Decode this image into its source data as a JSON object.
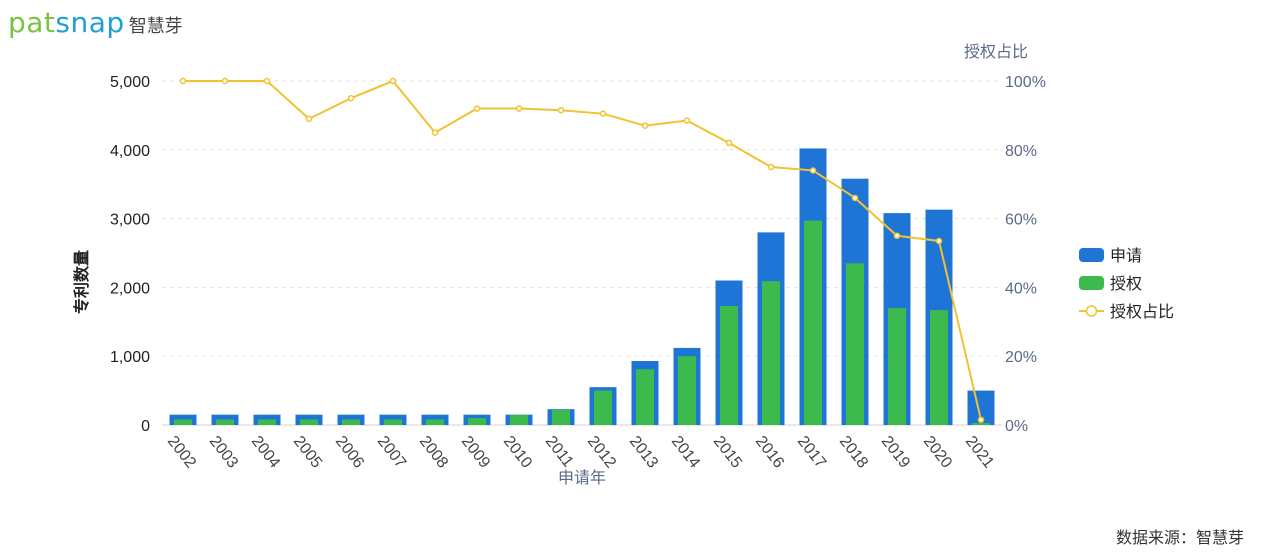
{
  "brand": {
    "prefix": "pat",
    "suffix": "snap",
    "cn": "智慧芽"
  },
  "source_text": "数据来源：智慧芽",
  "colors": {
    "applications": "#1f75d6",
    "grants": "#3dba4e",
    "ratio": "#f1c232"
  },
  "chart_data": {
    "type": "bar",
    "categories": [
      "2002",
      "2003",
      "2004",
      "2005",
      "2006",
      "2007",
      "2008",
      "2009",
      "2010",
      "2011",
      "2012",
      "2013",
      "2014",
      "2015",
      "2016",
      "2017",
      "2018",
      "2019",
      "2020",
      "2021"
    ],
    "series": [
      {
        "name": "申请",
        "type": "bar",
        "axis": "left",
        "values": [
          150,
          150,
          150,
          150,
          150,
          150,
          150,
          150,
          150,
          230,
          550,
          930,
          1120,
          2100,
          2800,
          4020,
          3580,
          3080,
          3130,
          500
        ]
      },
      {
        "name": "授权",
        "type": "bar",
        "axis": "left",
        "values": [
          80,
          80,
          80,
          80,
          80,
          80,
          80,
          100,
          150,
          220,
          500,
          810,
          1000,
          1730,
          2090,
          2970,
          2350,
          1700,
          1670,
          30
        ]
      },
      {
        "name": "授权占比",
        "type": "line",
        "axis": "right",
        "values": [
          100,
          100,
          100,
          89,
          95,
          100,
          85,
          92,
          92,
          91.5,
          90.5,
          87,
          88.5,
          82,
          75,
          74,
          66,
          55,
          53.5,
          1.5
        ]
      }
    ],
    "xlabel": "申请年",
    "ylabel": "专利数量",
    "y2label": "授权占比",
    "ylim": [
      0,
      5000
    ],
    "yticks": [
      "0",
      "1,000",
      "2,000",
      "3,000",
      "4,000",
      "5,000"
    ],
    "y2lim": [
      0,
      100
    ],
    "y2ticks": [
      "0%",
      "20%",
      "40%",
      "60%",
      "80%",
      "100%"
    ],
    "legend": [
      "申请",
      "授权",
      "授权占比"
    ],
    "legend_position": "right",
    "grid": true
  }
}
